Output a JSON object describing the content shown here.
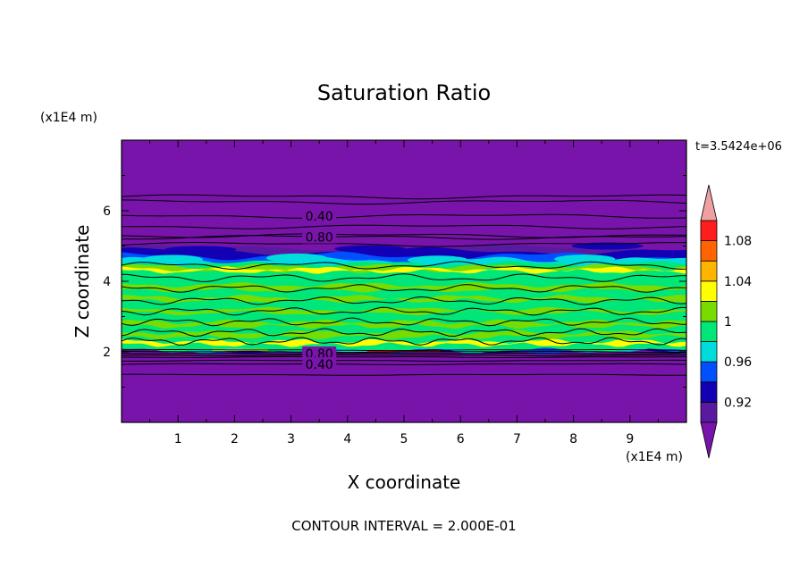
{
  "chart_data": {
    "type": "heatmap",
    "title": "Saturation Ratio",
    "xlabel": "X coordinate",
    "ylabel": "Z coordinate",
    "x_unit": "(x1E4 m)",
    "y_unit": "(x1E4 m)",
    "time_label": "t=3.5424e+06",
    "footer": "CONTOUR INTERVAL = 2.000E-01",
    "xlim": [
      0,
      10
    ],
    "ylim": [
      0,
      8
    ],
    "x_ticks": [
      "1",
      "2",
      "3",
      "4",
      "5",
      "6",
      "7",
      "8",
      "9"
    ],
    "y_ticks": [
      "2",
      "4",
      "6"
    ],
    "contour_labels": [
      {
        "text": "0.40",
        "x": 3.5,
        "y": 5.85
      },
      {
        "text": "0.80",
        "x": 3.5,
        "y": 5.25
      },
      {
        "text": "0.80",
        "x": 3.5,
        "y": 1.95
      },
      {
        "text": "0.40",
        "x": 3.5,
        "y": 1.65
      }
    ],
    "colorbar": {
      "levels": [
        0.9,
        0.92,
        0.94,
        0.96,
        0.98,
        1.0,
        1.02,
        1.04,
        1.06,
        1.08,
        1.1
      ],
      "colors": [
        "#5a1aa0",
        "#1400b4",
        "#0050ff",
        "#00dcdc",
        "#00e678",
        "#78dc00",
        "#ffff00",
        "#ffb400",
        "#ff6400",
        "#ff1e1e"
      ],
      "under_color": "#7814aa",
      "over_color": "#f0a0a0",
      "tick_labels": [
        "0.92",
        "0.96",
        "1",
        "1.04",
        "1.08"
      ],
      "tick_values": [
        0.92,
        0.96,
        1.0,
        1.04,
        1.08
      ]
    },
    "background_color": "#7814aa"
  }
}
